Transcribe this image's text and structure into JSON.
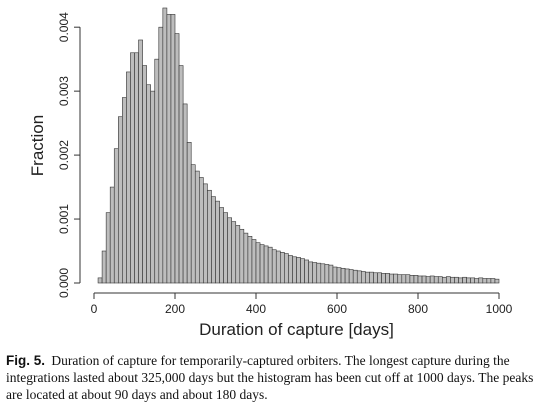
{
  "chart_data": {
    "type": "bar",
    "title": "",
    "xlabel": "Duration of capture [days]",
    "ylabel": "Fraction",
    "xlim": [
      0,
      1000
    ],
    "ylim": [
      0,
      0.0043
    ],
    "xticks": [
      0,
      200,
      400,
      600,
      800,
      1000
    ],
    "xtick_labels": [
      "0",
      "200",
      "400",
      "600",
      "800",
      "1000"
    ],
    "yticks": [
      0,
      0.001,
      0.002,
      0.003,
      0.004
    ],
    "ytick_labels": [
      "0.000",
      "0.001",
      "0.002",
      "0.003",
      "0.004"
    ],
    "bin_width": 10,
    "bin_starts": [
      10,
      20,
      30,
      40,
      50,
      60,
      70,
      80,
      90,
      100,
      110,
      120,
      130,
      140,
      150,
      160,
      170,
      180,
      190,
      200,
      210,
      220,
      230,
      240,
      250,
      260,
      270,
      280,
      290,
      300,
      310,
      320,
      330,
      340,
      350,
      360,
      370,
      380,
      390,
      400,
      410,
      420,
      430,
      440,
      450,
      460,
      470,
      480,
      490,
      500,
      510,
      520,
      530,
      540,
      550,
      560,
      570,
      580,
      590,
      600,
      610,
      620,
      630,
      640,
      650,
      660,
      670,
      680,
      690,
      700,
      710,
      720,
      730,
      740,
      750,
      760,
      770,
      780,
      790,
      800,
      810,
      820,
      830,
      840,
      850,
      860,
      870,
      880,
      890,
      900,
      910,
      920,
      930,
      940,
      950,
      960,
      970,
      980,
      990
    ],
    "values": [
      8e-05,
      0.0005,
      0.0011,
      0.0015,
      0.0021,
      0.0026,
      0.0029,
      0.0033,
      0.0036,
      0.0036,
      0.0038,
      0.0034,
      0.0031,
      0.003,
      0.0035,
      0.004,
      0.0043,
      0.0042,
      0.0042,
      0.0039,
      0.0034,
      0.0028,
      0.0022,
      0.00185,
      0.00175,
      0.00165,
      0.00155,
      0.00145,
      0.00135,
      0.00128,
      0.00118,
      0.0011,
      0.00102,
      0.00096,
      0.0009,
      0.00084,
      0.00078,
      0.00073,
      0.00068,
      0.00063,
      0.0006,
      0.00058,
      0.00056,
      0.00052,
      0.0005,
      0.00048,
      0.00046,
      0.00043,
      0.00041,
      0.0004,
      0.00038,
      0.00036,
      0.00033,
      0.00032,
      0.00031,
      0.0003,
      0.00029,
      0.00028,
      0.00025,
      0.00024,
      0.00023,
      0.00022,
      0.00021,
      0.0002,
      0.00019,
      0.00018,
      0.00017,
      0.00017,
      0.00016,
      0.00016,
      0.00015,
      0.00015,
      0.00014,
      0.00014,
      0.00013,
      0.00013,
      0.00013,
      0.00012,
      0.00012,
      0.00011,
      0.00011,
      0.0001,
      0.00011,
      0.0001,
      0.0001,
      9e-05,
      0.0001,
      9e-05,
      9e-05,
      8e-05,
      9e-05,
      8e-05,
      8e-05,
      7e-05,
      8e-05,
      7e-05,
      7e-05,
      7e-05,
      6e-05
    ],
    "bar_color": "#bdbdbd",
    "bar_edge_color": "#333333",
    "grid": false,
    "legend": "none"
  },
  "caption": {
    "label": "Fig. 5.",
    "text": "Duration of capture for temporarily-captured orbiters. The longest capture during the integrations lasted about 325,000 days but the histogram has been cut off at 1000 days. The peaks are located at about 90 days and about 180 days."
  }
}
